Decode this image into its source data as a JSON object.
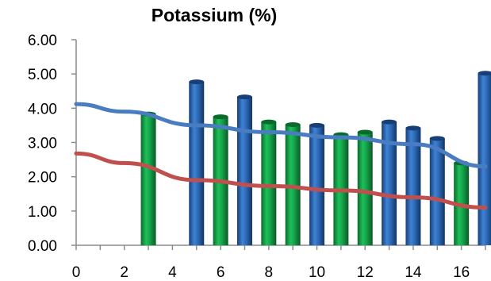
{
  "chart_data": {
    "type": "bar",
    "title": "Potassium (%)",
    "xlabel": "",
    "ylabel": "",
    "xlim": [
      0,
      17
    ],
    "ylim": [
      0,
      6
    ],
    "x_tick_labels": [
      "0",
      "2",
      "4",
      "6",
      "8",
      "10",
      "12",
      "14",
      "16"
    ],
    "y_tick_labels": [
      "0.00",
      "1.00",
      "2.00",
      "3.00",
      "4.00",
      "5.00",
      "6.00"
    ],
    "grid": false,
    "legend": "none",
    "bars": [
      {
        "x": 3,
        "value": 3.83,
        "color": "green"
      },
      {
        "x": 5,
        "value": 4.77,
        "color": "blue"
      },
      {
        "x": 6,
        "value": 3.75,
        "color": "green"
      },
      {
        "x": 7,
        "value": 4.33,
        "color": "blue"
      },
      {
        "x": 8,
        "value": 3.6,
        "color": "green"
      },
      {
        "x": 9,
        "value": 3.52,
        "color": "green"
      },
      {
        "x": 10,
        "value": 3.5,
        "color": "blue"
      },
      {
        "x": 11,
        "value": 3.23,
        "color": "green"
      },
      {
        "x": 12,
        "value": 3.3,
        "color": "green"
      },
      {
        "x": 13,
        "value": 3.6,
        "color": "blue"
      },
      {
        "x": 14,
        "value": 3.42,
        "color": "blue"
      },
      {
        "x": 15,
        "value": 3.12,
        "color": "blue"
      },
      {
        "x": 16,
        "value": 2.4,
        "color": "green"
      },
      {
        "x": 17,
        "value": 5.02,
        "color": "blue"
      }
    ],
    "series": [
      {
        "type": "line",
        "color": "blue",
        "x": [
          0,
          2,
          5,
          8,
          11,
          14,
          17
        ],
        "y": [
          4.12,
          3.9,
          3.5,
          3.3,
          3.15,
          2.95,
          2.3
        ]
      },
      {
        "type": "line",
        "color": "red",
        "x": [
          0,
          2,
          5,
          8,
          11,
          14,
          17
        ],
        "y": [
          2.68,
          2.4,
          1.9,
          1.73,
          1.6,
          1.4,
          1.1
        ]
      }
    ]
  },
  "colors": {
    "green_bar": "#12a84a",
    "green_bar_dark": "#0a6a2c",
    "blue_bar": "#2f6fbf",
    "blue_bar_dark": "#163f78",
    "blue_line": "#4a7cc2",
    "red_line": "#c0504d",
    "axis": "#8c8c8c"
  }
}
